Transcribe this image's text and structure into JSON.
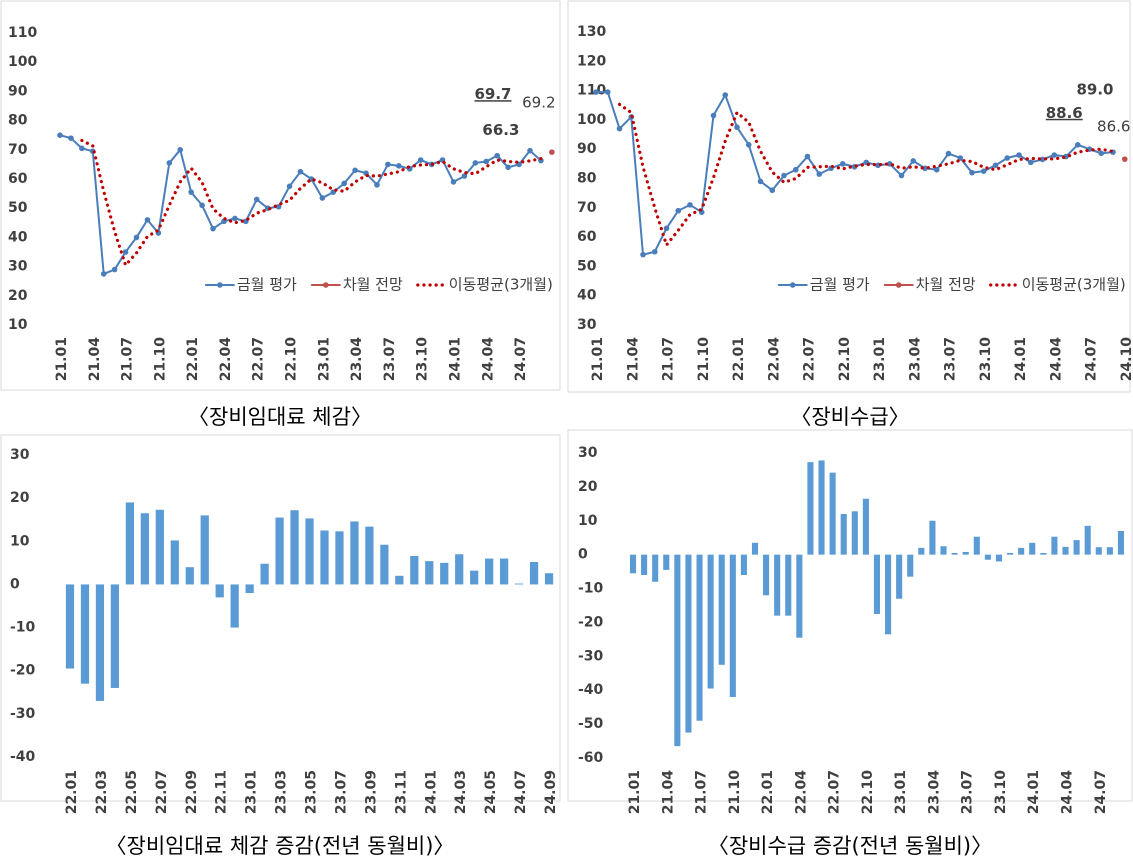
{
  "chart_data": [
    {
      "type": "line",
      "title": "〈장비임대료 체감〉",
      "ylim": [
        10,
        110
      ],
      "yticks": [
        10,
        20,
        30,
        40,
        50,
        60,
        70,
        80,
        90,
        100,
        110
      ],
      "grid": false,
      "legend": "lower right",
      "categories": [
        "21.01",
        null,
        null,
        "21.04",
        null,
        null,
        "21.07",
        null,
        null,
        "21.10",
        null,
        null,
        "22.01",
        null,
        null,
        "22.04",
        null,
        null,
        "22.07",
        null,
        null,
        "22.10",
        null,
        null,
        "23.01",
        null,
        null,
        "23.04",
        null,
        null,
        "23.07",
        null,
        null,
        "23.10",
        null,
        null,
        "24.01",
        null,
        null,
        "24.04",
        null,
        null,
        "24.07",
        null,
        null,
        null
      ],
      "series": [
        {
          "name": "금월 평가",
          "color": "#4a7ebb",
          "values": [
            75,
            74,
            70.5,
            69.5,
            27.5,
            29,
            35,
            40,
            46,
            41.5,
            65.5,
            70,
            55.5,
            51,
            43,
            45.5,
            46.5,
            45.5,
            53,
            50,
            50.5,
            57.5,
            62.5,
            60,
            53.5,
            55.5,
            58.5,
            63,
            62,
            58,
            65,
            64.5,
            63.5,
            66.5,
            65,
            66.5,
            59,
            61,
            65.5,
            66,
            68,
            64,
            65,
            69.7,
            66.3,
            null
          ],
          "value_labels": [
            null,
            null,
            null,
            null,
            null,
            null,
            null,
            null,
            null,
            null,
            null,
            null,
            null,
            null,
            null,
            null,
            null,
            null,
            null,
            null,
            null,
            null,
            null,
            null,
            null,
            null,
            null,
            null,
            null,
            null,
            null,
            null,
            null,
            null,
            null,
            null,
            null,
            null,
            null,
            null,
            null,
            null,
            null,
            "69.7",
            "66.3",
            null
          ]
        },
        {
          "name": "차월 전망",
          "color": "#c0504d",
          "values": [
            null,
            null,
            null,
            null,
            null,
            null,
            null,
            null,
            null,
            null,
            null,
            null,
            null,
            null,
            null,
            null,
            null,
            null,
            null,
            null,
            null,
            null,
            null,
            null,
            null,
            null,
            null,
            null,
            null,
            null,
            null,
            null,
            null,
            null,
            null,
            null,
            null,
            null,
            null,
            null,
            null,
            null,
            null,
            null,
            null,
            69.2
          ],
          "value_labels": [
            null,
            null,
            null,
            null,
            null,
            null,
            null,
            null,
            null,
            null,
            null,
            null,
            null,
            null,
            null,
            null,
            null,
            null,
            null,
            null,
            null,
            null,
            null,
            null,
            null,
            null,
            null,
            null,
            null,
            null,
            null,
            null,
            null,
            null,
            null,
            null,
            null,
            null,
            null,
            null,
            null,
            null,
            null,
            null,
            null,
            "69.2"
          ]
        },
        {
          "name": "이동평균(3개월)",
          "color": "#c00000",
          "dotted": true,
          "values": [
            null,
            null,
            73.2,
            71.3,
            55.8,
            42,
            30.5,
            34.7,
            40.3,
            42.5,
            51,
            59,
            63.7,
            58.8,
            49.8,
            46.5,
            45,
            45.8,
            48.3,
            49.5,
            51.2,
            52.7,
            56.8,
            60,
            58.7,
            56.3,
            55.8,
            59,
            61.2,
            61,
            61.7,
            62.5,
            64.3,
            64.8,
            65,
            66,
            63.5,
            62.2,
            61.8,
            64.2,
            66.5,
            66,
            65.7,
            66.2,
            67,
            null
          ]
        }
      ]
    },
    {
      "type": "line",
      "title": "〈장비수급〉",
      "ylim": [
        30,
        130
      ],
      "yticks": [
        30,
        40,
        50,
        60,
        70,
        80,
        90,
        100,
        110,
        120,
        130
      ],
      "grid": false,
      "legend": "lower right",
      "categories": [
        "21.01",
        null,
        null,
        "21.04",
        null,
        null,
        "21.07",
        null,
        null,
        "21.10",
        null,
        null,
        "22.01",
        null,
        null,
        "22.04",
        null,
        null,
        "22.07",
        null,
        null,
        "22.10",
        null,
        null,
        "23.01",
        null,
        null,
        "23.04",
        null,
        null,
        "23.07",
        null,
        null,
        "23.10",
        null,
        null,
        "24.01",
        null,
        null,
        "24.04",
        null,
        null,
        "24.07",
        null,
        null,
        "24.10"
      ],
      "series": [
        {
          "name": "금월 평가",
          "color": "#4a7ebb",
          "values": [
            109.5,
            109.5,
            97,
            101,
            54,
            55,
            63,
            69,
            71,
            68.5,
            101.5,
            108.5,
            97.5,
            91.5,
            79,
            76,
            81,
            83,
            87.5,
            81.5,
            83.5,
            85,
            84,
            85.5,
            84.5,
            85,
            81,
            86,
            83.5,
            83,
            88.5,
            87,
            82,
            82.5,
            84.5,
            87,
            88,
            85.5,
            86.5,
            88,
            87.5,
            91.5,
            90,
            88.6,
            89.0,
            null
          ],
          "value_labels": [
            null,
            null,
            null,
            null,
            null,
            null,
            null,
            null,
            null,
            null,
            null,
            null,
            null,
            null,
            null,
            null,
            null,
            null,
            null,
            null,
            null,
            null,
            null,
            null,
            null,
            null,
            null,
            null,
            null,
            null,
            null,
            null,
            null,
            null,
            null,
            null,
            null,
            null,
            null,
            null,
            null,
            null,
            null,
            "88.6",
            "89.0",
            null
          ]
        },
        {
          "name": "차월 전망",
          "color": "#c0504d",
          "values": [
            null,
            null,
            null,
            null,
            null,
            null,
            null,
            null,
            null,
            null,
            null,
            null,
            null,
            null,
            null,
            null,
            null,
            null,
            null,
            null,
            null,
            null,
            null,
            null,
            null,
            null,
            null,
            null,
            null,
            null,
            null,
            null,
            null,
            null,
            null,
            null,
            null,
            null,
            null,
            null,
            null,
            null,
            null,
            null,
            null,
            86.6
          ],
          "value_labels": [
            null,
            null,
            null,
            null,
            null,
            null,
            null,
            null,
            null,
            null,
            null,
            null,
            null,
            null,
            null,
            null,
            null,
            null,
            null,
            null,
            null,
            null,
            null,
            null,
            null,
            null,
            null,
            null,
            null,
            null,
            null,
            null,
            null,
            null,
            null,
            null,
            null,
            null,
            null,
            null,
            null,
            null,
            null,
            null,
            null,
            "86.6"
          ]
        },
        {
          "name": "이동평균(3개월)",
          "color": "#c00000",
          "dotted": true,
          "values": [
            null,
            null,
            105.3,
            102.5,
            84,
            70,
            57.3,
            62.3,
            67.7,
            69.5,
            80.3,
            92.8,
            102.5,
            99.2,
            89.3,
            82.2,
            78.7,
            80,
            83.8,
            84,
            84.2,
            83.3,
            84.2,
            84.8,
            84.7,
            85,
            83.5,
            84,
            83.5,
            84.2,
            85,
            86.2,
            85.8,
            83.8,
            83,
            84.7,
            86.5,
            86.8,
            86.7,
            86.7,
            87.3,
            89,
            89.7,
            90,
            89.2,
            null
          ]
        }
      ]
    },
    {
      "type": "bar",
      "title": "〈장비임대료 체감 증감(전년 동월비)〉",
      "ylim": [
        -40,
        30
      ],
      "yticks": [
        -40,
        -30,
        -20,
        -10,
        0,
        10,
        20,
        30
      ],
      "grid": false,
      "color": "#5b9bd5",
      "categories": [
        "22.01",
        null,
        "22.03",
        null,
        "22.05",
        null,
        "22.07",
        null,
        "22.09",
        null,
        "22.11",
        null,
        "23.01",
        null,
        "23.03",
        null,
        "23.05",
        null,
        "23.07",
        null,
        "23.09",
        null,
        "23.11",
        null,
        "24.01",
        null,
        "24.03",
        null,
        "24.05",
        null,
        "24.07",
        null,
        "24.09"
      ],
      "values": [
        -19.5,
        -23,
        -27,
        -24,
        19,
        16.5,
        17.3,
        10.2,
        4,
        16,
        -3,
        -10,
        -2,
        4.8,
        15.5,
        17.2,
        15.3,
        12.5,
        12.3,
        14.6,
        13.4,
        9.2,
        2,
        6.6,
        5.4,
        5,
        7,
        3.2,
        6,
        6,
        0.2,
        5.2,
        2.6
      ]
    },
    {
      "type": "bar",
      "title": "〈장비수급 증감(전년 동월비)〉",
      "ylim": [
        -60,
        30
      ],
      "yticks": [
        -60,
        -50,
        -40,
        -30,
        -20,
        -10,
        0,
        10,
        20,
        30
      ],
      "grid": false,
      "color": "#5b9bd5",
      "categories": [
        "21.01",
        null,
        null,
        "21.04",
        null,
        null,
        "21.07",
        null,
        null,
        "21.10",
        null,
        null,
        "22.01",
        null,
        null,
        "22.04",
        null,
        null,
        "22.07",
        null,
        null,
        "22.10",
        null,
        null,
        "23.01",
        null,
        null,
        "23.04",
        null,
        null,
        "23.07",
        null,
        null,
        "23.10",
        null,
        null,
        "24.01",
        null,
        null,
        "24.04",
        null,
        null,
        "24.07",
        null,
        null
      ],
      "values": [
        -5.5,
        -6,
        -8,
        -4.5,
        -56.5,
        -52.5,
        -49,
        -39.5,
        -32.5,
        -42,
        -6,
        3.5,
        -12,
        -18,
        -18,
        -24.5,
        27.3,
        27.8,
        24.2,
        12,
        12.8,
        16.5,
        -17.5,
        -23.5,
        -13,
        -6.5,
        2,
        10,
        2.5,
        0.5,
        0.8,
        5.3,
        -1.5,
        -2,
        0.5,
        2,
        3.5,
        0.5,
        5.3,
        2.3,
        4.3,
        8.5,
        2.2,
        2.2,
        7
      ]
    }
  ]
}
